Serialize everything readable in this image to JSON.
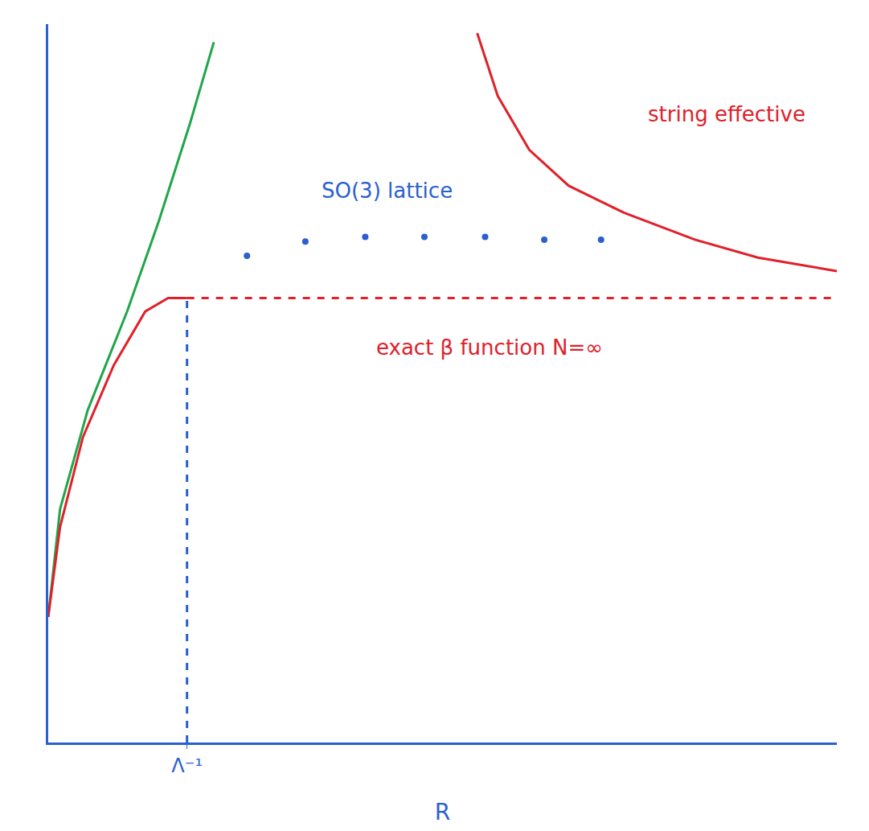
{
  "chart_data": {
    "type": "line",
    "xlabel": "R",
    "xlim": [
      0,
      10
    ],
    "ylim": [
      0,
      8
    ],
    "xticks": [
      {
        "value": 1.76,
        "label": "Λ⁻¹"
      }
    ],
    "yticks": [],
    "tick_labels": "x",
    "grid": false,
    "series": [
      {
        "color": "#1fa64a",
        "line_style": "solid",
        "type": "line",
        "x": [
          0,
          0.15,
          0.5,
          1.0,
          1.4,
          1.8,
          2.1
        ],
        "values": [
          1.4,
          2.6,
          3.7,
          4.8,
          5.8,
          6.9,
          7.8
        ]
      },
      {
        "color": "#e0202a",
        "line_style": "solid",
        "type": "line",
        "x": [
          0,
          0.15,
          0.44,
          0.83,
          1.23,
          1.52,
          1.76
        ],
        "values": [
          1.4,
          2.4,
          3.4,
          4.2,
          4.8,
          4.95,
          4.95
        ]
      },
      {
        "color": "#e0202a",
        "line_style": "dashed",
        "type": "line",
        "x": [
          1.76,
          10
        ],
        "values": [
          4.95,
          4.95
        ]
      },
      {
        "color": "#2a5fd0",
        "line_style": "dashed",
        "type": "line",
        "x": [
          1.76,
          1.76
        ],
        "values": [
          0,
          4.95
        ]
      },
      {
        "color": "#2a5fd0",
        "marker": "circle",
        "type": "scatter",
        "x": [
          2.52,
          3.26,
          4.02,
          4.77,
          5.54,
          6.29,
          7.01
        ],
        "values": [
          5.42,
          5.58,
          5.63,
          5.63,
          5.63,
          5.6,
          5.6
        ]
      },
      {
        "color": "#e0202a",
        "line_style": "solid",
        "type": "line",
        "x": [
          5.44,
          5.7,
          6.1,
          6.6,
          7.3,
          8.2,
          9.0,
          10
        ],
        "values": [
          7.9,
          7.2,
          6.6,
          6.2,
          5.9,
          5.6,
          5.4,
          5.25
        ]
      }
    ],
    "annotations": [
      {
        "text": "SO(3) lattice",
        "x": 4.3,
        "y": 6.15,
        "color": "#2a5fd0"
      },
      {
        "text": "exact β function N=∞",
        "x": 5.6,
        "y": 4.4,
        "color": "#e0202a"
      },
      {
        "text": "string effective",
        "x": 8.6,
        "y": 7.0,
        "color": "#e0202a"
      }
    ]
  }
}
